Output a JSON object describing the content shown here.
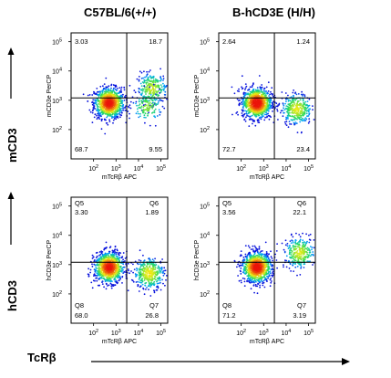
{
  "column_titles": [
    "C57BL/6(+/+)",
    "B-hCD3E  (H/H)"
  ],
  "row_labels": [
    "mCD3",
    "hCD3"
  ],
  "x_axis_caption": "TcRβ",
  "chart_data": [
    {
      "type": "scatter",
      "subtype": "flow-cytometry-density-plot",
      "xlabel": "mTcRβ APC",
      "ylabel": "mCD3e PerCP",
      "xscale": "log",
      "yscale": "log",
      "x_ticks": [
        "10^2",
        "10^3",
        "10^4",
        "10^5"
      ],
      "y_ticks": [
        "10^2",
        "10^3",
        "10^4",
        "10^5"
      ],
      "quadrant_gate": {
        "x": 3000,
        "y": 1200
      },
      "quadrant_names": {
        "UL": "",
        "UR": "",
        "LL": "",
        "LR": ""
      },
      "quadrants": {
        "UL": "3.03",
        "UR": "18.7",
        "LL": "68.7",
        "LR": "9.55"
      },
      "populations": [
        {
          "x": 500,
          "y": 800,
          "weight": 0.69
        },
        {
          "x": 40000,
          "y": 2500,
          "weight": 0.19
        },
        {
          "x": 25000,
          "y": 600,
          "weight": 0.1
        }
      ]
    },
    {
      "type": "scatter",
      "subtype": "flow-cytometry-density-plot",
      "xlabel": "mTcRβ APC",
      "ylabel": "mCD3e PerCP",
      "xscale": "log",
      "yscale": "log",
      "x_ticks": [
        "10^2",
        "10^3",
        "10^4",
        "10^5"
      ],
      "y_ticks": [
        "10^2",
        "10^3",
        "10^4",
        "10^5"
      ],
      "quadrant_gate": {
        "x": 3000,
        "y": 1200
      },
      "quadrant_names": {
        "UL": "",
        "UR": "",
        "LL": "",
        "LR": ""
      },
      "quadrants": {
        "UL": "2.64",
        "UR": "1.24",
        "LL": "72.7",
        "LR": "23.4"
      },
      "populations": [
        {
          "x": 500,
          "y": 800,
          "weight": 0.73
        },
        {
          "x": 30000,
          "y": 500,
          "weight": 0.24
        }
      ]
    },
    {
      "type": "scatter",
      "subtype": "flow-cytometry-density-plot",
      "xlabel": "mTcRβ APC",
      "ylabel": "hCD3e PerCP",
      "xscale": "log",
      "yscale": "log",
      "x_ticks": [
        "10^2",
        "10^3",
        "10^4",
        "10^5"
      ],
      "y_ticks": [
        "10^2",
        "10^3",
        "10^4",
        "10^5"
      ],
      "quadrant_gate": {
        "x": 3000,
        "y": 1200
      },
      "quadrant_names": {
        "UL": "Q5",
        "UR": "Q6",
        "LL": "Q8",
        "LR": "Q7"
      },
      "quadrants": {
        "UL": "3.30",
        "UR": "1.89",
        "LL": "68.0",
        "LR": "26.8"
      },
      "populations": [
        {
          "x": 500,
          "y": 800,
          "weight": 0.68
        },
        {
          "x": 30000,
          "y": 500,
          "weight": 0.27
        }
      ]
    },
    {
      "type": "scatter",
      "subtype": "flow-cytometry-density-plot",
      "xlabel": "mTcRβ APC",
      "ylabel": "hCD3e PerCP",
      "xscale": "log",
      "yscale": "log",
      "x_ticks": [
        "10^2",
        "10^3",
        "10^4",
        "10^5"
      ],
      "y_ticks": [
        "10^2",
        "10^3",
        "10^4",
        "10^5"
      ],
      "quadrant_gate": {
        "x": 3000,
        "y": 1200
      },
      "quadrant_names": {
        "UL": "Q5",
        "UR": "Q6",
        "LL": "Q8",
        "LR": "Q7"
      },
      "quadrants": {
        "UL": "3.56",
        "UR": "22.1",
        "LL": "71.2",
        "LR": "3.19"
      },
      "populations": [
        {
          "x": 500,
          "y": 800,
          "weight": 0.71
        },
        {
          "x": 40000,
          "y": 2500,
          "weight": 0.22
        }
      ]
    }
  ]
}
